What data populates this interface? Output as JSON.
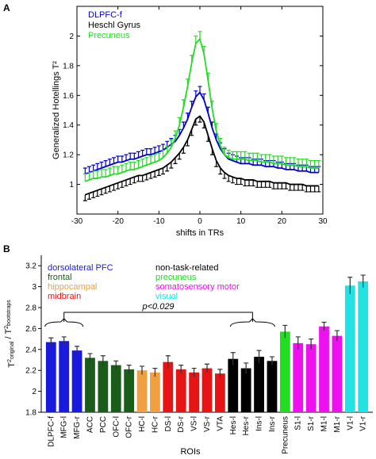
{
  "chart_data": [
    {
      "panel": "A",
      "type": "line",
      "xlabel": "shifts in TRs",
      "ylabel": "Generalized Hotellings T²",
      "xlim": [
        -30,
        30
      ],
      "ylim": [
        0.8,
        2.2
      ],
      "xticks": [
        -30,
        -20,
        -10,
        0,
        10,
        20,
        30
      ],
      "yticks": [
        1,
        1.2,
        1.4,
        1.6,
        1.8,
        2
      ],
      "ytick_labels": [
        "1",
        "1.2",
        "1.4",
        "1.6",
        "1.8",
        "2"
      ],
      "legend_position": "top-left",
      "series": [
        {
          "name": "DLPFC-f",
          "color": "#0000cc",
          "x": [
            -28,
            -27,
            -26,
            -25,
            -24,
            -23,
            -22,
            -21,
            -20,
            -19,
            -18,
            -17,
            -16,
            -15,
            -14,
            -13,
            -12,
            -11,
            -10,
            -9,
            -8,
            -7,
            -6,
            -5,
            -4,
            -3,
            -2,
            -1,
            0,
            1,
            2,
            3,
            4,
            5,
            6,
            7,
            8,
            9,
            10,
            11,
            12,
            13,
            14,
            15,
            16,
            17,
            18,
            19,
            20,
            21,
            22,
            23,
            24,
            25,
            26,
            27,
            28,
            29
          ],
          "values": [
            1.07,
            1.08,
            1.09,
            1.1,
            1.11,
            1.12,
            1.13,
            1.14,
            1.15,
            1.15,
            1.16,
            1.17,
            1.17,
            1.18,
            1.19,
            1.2,
            1.2,
            1.21,
            1.22,
            1.23,
            1.25,
            1.27,
            1.29,
            1.33,
            1.38,
            1.44,
            1.52,
            1.59,
            1.62,
            1.57,
            1.48,
            1.38,
            1.3,
            1.24,
            1.2,
            1.17,
            1.16,
            1.15,
            1.14,
            1.14,
            1.14,
            1.13,
            1.13,
            1.13,
            1.12,
            1.12,
            1.12,
            1.11,
            1.11,
            1.1,
            1.1,
            1.1,
            1.09,
            1.09,
            1.09,
            1.08,
            1.08,
            1.08
          ],
          "err": 0.04
        },
        {
          "name": "Heschl Gyrus",
          "color": "#000000",
          "x": [
            -28,
            -27,
            -26,
            -25,
            -24,
            -23,
            -22,
            -21,
            -20,
            -19,
            -18,
            -17,
            -16,
            -15,
            -14,
            -13,
            -12,
            -11,
            -10,
            -9,
            -8,
            -7,
            -6,
            -5,
            -4,
            -3,
            -2,
            -1,
            0,
            1,
            2,
            3,
            4,
            5,
            6,
            7,
            8,
            9,
            10,
            11,
            12,
            13,
            14,
            15,
            16,
            17,
            18,
            19,
            20,
            21,
            22,
            23,
            24,
            25,
            26,
            27,
            28,
            29
          ],
          "values": [
            0.93,
            0.94,
            0.95,
            0.96,
            0.97,
            0.98,
            0.99,
            1.0,
            1.01,
            1.02,
            1.03,
            1.04,
            1.05,
            1.06,
            1.06,
            1.07,
            1.08,
            1.09,
            1.1,
            1.11,
            1.13,
            1.15,
            1.18,
            1.21,
            1.25,
            1.3,
            1.37,
            1.44,
            1.46,
            1.42,
            1.33,
            1.24,
            1.16,
            1.11,
            1.08,
            1.06,
            1.05,
            1.04,
            1.04,
            1.03,
            1.03,
            1.03,
            1.02,
            1.02,
            1.02,
            1.02,
            1.01,
            1.01,
            1.01,
            1.01,
            1.0,
            1.0,
            1.0,
            1.0,
            0.99,
            0.99,
            0.99,
            0.99
          ],
          "err": 0.04
        },
        {
          "name": "Precuneus",
          "color": "#22dd22",
          "x": [
            -28,
            -27,
            -26,
            -25,
            -24,
            -23,
            -22,
            -21,
            -20,
            -19,
            -18,
            -17,
            -16,
            -15,
            -14,
            -13,
            -12,
            -11,
            -10,
            -9,
            -8,
            -7,
            -6,
            -5,
            -4,
            -3,
            -2,
            -1,
            0,
            1,
            2,
            3,
            4,
            5,
            6,
            7,
            8,
            9,
            10,
            11,
            12,
            13,
            14,
            15,
            16,
            17,
            18,
            19,
            20,
            21,
            22,
            23,
            24,
            25,
            26,
            27,
            28,
            29
          ],
          "values": [
            1.02,
            1.03,
            1.04,
            1.04,
            1.05,
            1.05,
            1.06,
            1.07,
            1.07,
            1.08,
            1.09,
            1.1,
            1.1,
            1.11,
            1.12,
            1.13,
            1.14,
            1.15,
            1.16,
            1.18,
            1.21,
            1.25,
            1.31,
            1.4,
            1.52,
            1.66,
            1.82,
            1.95,
            1.98,
            1.88,
            1.7,
            1.51,
            1.36,
            1.26,
            1.2,
            1.18,
            1.17,
            1.17,
            1.17,
            1.17,
            1.16,
            1.16,
            1.16,
            1.15,
            1.15,
            1.15,
            1.14,
            1.14,
            1.14,
            1.13,
            1.13,
            1.13,
            1.12,
            1.12,
            1.12,
            1.11,
            1.11,
            1.11
          ],
          "err": 0.05
        }
      ]
    },
    {
      "panel": "B",
      "type": "bar",
      "xlabel": "ROIs",
      "ylabel": "T²original / T²bootstraps",
      "ylim": [
        1.8,
        3.3
      ],
      "yticks": [
        1.8,
        2,
        2.2,
        2.4,
        2.6,
        2.8,
        3,
        3.2
      ],
      "ytick_labels": [
        "1.8",
        "2",
        "2.2",
        "2.4",
        "2.6",
        "2.8",
        "3",
        "3.2"
      ],
      "categories": [
        "DLPFC-f",
        "MFG-l",
        "MFG-r",
        "ACC",
        "PCC",
        "OFC-l",
        "OFC-r",
        "HC-l",
        "HC-r",
        "DS-l",
        "DS-r",
        "VS-l",
        "VS-r",
        "VTA",
        "Hes-l",
        "Hes-r",
        "Ins-l",
        "Ins-r",
        "Precuneus",
        "S1-l",
        "S1-r",
        "M1-l",
        "M1-r",
        "V1-l",
        "V1-r"
      ],
      "values": [
        2.47,
        2.48,
        2.39,
        2.32,
        2.29,
        2.25,
        2.21,
        2.2,
        2.18,
        2.28,
        2.21,
        2.18,
        2.22,
        2.17,
        2.31,
        2.22,
        2.33,
        2.29,
        2.57,
        2.46,
        2.45,
        2.62,
        2.53,
        3.01,
        3.05
      ],
      "errors": [
        0.04,
        0.04,
        0.04,
        0.04,
        0.05,
        0.04,
        0.04,
        0.04,
        0.04,
        0.06,
        0.04,
        0.04,
        0.04,
        0.04,
        0.06,
        0.05,
        0.06,
        0.04,
        0.06,
        0.06,
        0.05,
        0.04,
        0.05,
        0.08,
        0.06
      ],
      "groups": [
        {
          "name": "dorsolateral PFC",
          "color": "#1a1adf",
          "members": [
            "DLPFC-f",
            "MFG-l",
            "MFG-r"
          ]
        },
        {
          "name": "frontal",
          "color": "#1a5c1a",
          "members": [
            "ACC",
            "PCC",
            "OFC-l",
            "OFC-r"
          ]
        },
        {
          "name": "hippocampal",
          "color": "#f0a040",
          "members": [
            "HC-l",
            "HC-r"
          ]
        },
        {
          "name": "midbrain",
          "color": "#e61414",
          "members": [
            "DS-l",
            "DS-r",
            "VS-l",
            "VS-r",
            "VTA"
          ]
        },
        {
          "name": "non-task-related",
          "color": "#000000",
          "members": [
            "Hes-l",
            "Hes-r",
            "Ins-l",
            "Ins-r"
          ]
        },
        {
          "name": "precuneus",
          "color": "#22dd22",
          "members": [
            "Precuneus"
          ]
        },
        {
          "name": "somatosensory motor",
          "color": "#ee10ee",
          "members": [
            "S1-l",
            "S1-r",
            "M1-l",
            "M1-r"
          ]
        },
        {
          "name": "visual",
          "color": "#22e2e2",
          "members": [
            "V1-l",
            "V1-r"
          ]
        }
      ],
      "annotation": "p<0.029"
    }
  ]
}
